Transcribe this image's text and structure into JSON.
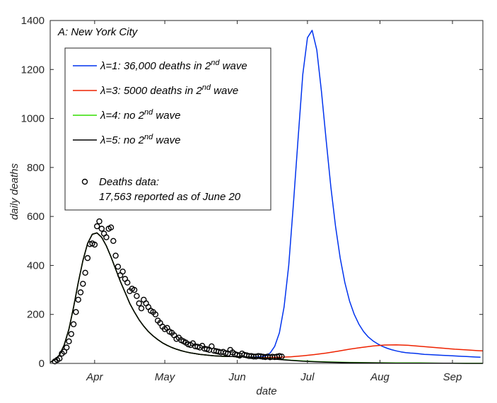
{
  "chart_data": {
    "type": "line",
    "panel_title": "A: New York City",
    "xlabel": "date",
    "ylabel": "daily deaths",
    "x_unit": "days since Mar 1",
    "xlim": [
      12,
      197
    ],
    "ylim": [
      0,
      1400
    ],
    "yticks": [
      0,
      200,
      400,
      600,
      800,
      1000,
      1200,
      1400
    ],
    "xticks": [
      {
        "label": "Apr",
        "day": 31
      },
      {
        "label": "May",
        "day": 61
      },
      {
        "label": "Jun",
        "day": 92
      },
      {
        "label": "Jul",
        "day": 122
      },
      {
        "label": "Aug",
        "day": 153
      },
      {
        "label": "Sep",
        "day": 184
      }
    ],
    "legend_position": "top-left",
    "series": [
      {
        "name": "lambda1",
        "label": "λ=1: 36,000 deaths in 2",
        "sup": "nd",
        "suffix": " wave",
        "color": "#0033ee",
        "x": [
          12,
          14,
          16,
          18,
          20,
          22,
          24,
          26,
          28,
          30,
          32,
          34,
          36,
          38,
          40,
          42,
          44,
          46,
          48,
          50,
          52,
          54,
          56,
          58,
          60,
          62,
          64,
          66,
          68,
          70,
          72,
          74,
          76,
          78,
          80,
          82,
          84,
          86,
          88,
          90,
          92,
          94,
          96,
          98,
          100,
          102,
          104,
          106,
          108,
          110,
          112,
          114,
          116,
          118,
          120,
          122,
          124,
          126,
          128,
          130,
          132,
          134,
          136,
          138,
          140,
          142,
          144,
          146,
          148,
          150,
          152,
          154,
          156,
          158,
          160,
          162,
          164,
          166,
          168,
          170,
          172,
          174,
          176,
          178,
          180,
          182,
          184,
          186,
          188,
          190,
          192,
          194,
          196
        ],
        "y": [
          5,
          15,
          35,
          75,
          140,
          230,
          330,
          420,
          490,
          527,
          533,
          515,
          480,
          435,
          385,
          335,
          290,
          245,
          210,
          178,
          152,
          130,
          112,
          97,
          84,
          74,
          65,
          58,
          52,
          47,
          43,
          40,
          37,
          35,
          33,
          31,
          30,
          29,
          28,
          28,
          27,
          27,
          26,
          26,
          26,
          27,
          30,
          42,
          70,
          125,
          230,
          400,
          650,
          920,
          1180,
          1330,
          1360,
          1280,
          1110,
          910,
          720,
          560,
          430,
          330,
          255,
          200,
          160,
          130,
          108,
          92,
          80,
          70,
          62,
          56,
          51,
          47,
          44,
          42,
          41,
          39,
          37,
          36,
          35,
          34,
          33,
          32,
          31,
          30,
          29,
          28,
          27,
          26,
          25
        ]
      },
      {
        "name": "lambda3",
        "label": "λ=3: 5000 deaths in 2",
        "sup": "nd",
        "suffix": " wave",
        "color": "#ee2200",
        "x": [
          12,
          14,
          16,
          18,
          20,
          22,
          24,
          26,
          28,
          30,
          32,
          34,
          36,
          38,
          40,
          42,
          44,
          46,
          48,
          50,
          52,
          54,
          56,
          58,
          60,
          62,
          64,
          66,
          68,
          70,
          72,
          74,
          76,
          78,
          80,
          82,
          84,
          86,
          88,
          90,
          92,
          94,
          96,
          98,
          100,
          105,
          110,
          115,
          120,
          125,
          130,
          135,
          140,
          145,
          150,
          155,
          160,
          165,
          170,
          175,
          180,
          185,
          190,
          195,
          197
        ],
        "y": [
          5,
          15,
          35,
          75,
          140,
          230,
          330,
          420,
          490,
          527,
          533,
          515,
          480,
          435,
          385,
          335,
          290,
          245,
          210,
          178,
          152,
          130,
          112,
          97,
          84,
          74,
          65,
          58,
          52,
          47,
          43,
          40,
          37,
          35,
          33,
          31,
          30,
          29,
          28,
          28,
          27,
          27,
          26,
          25,
          24,
          24,
          25,
          27,
          31,
          36,
          42,
          50,
          58,
          65,
          71,
          75,
          76,
          74,
          70,
          66,
          62,
          58,
          55,
          52,
          51
        ]
      },
      {
        "name": "lambda4",
        "label": "λ=4: no 2",
        "sup": "nd",
        "suffix": " wave",
        "color": "#33dd00",
        "x": [
          12,
          14,
          16,
          18,
          20,
          22,
          24,
          26,
          28,
          30,
          32,
          34,
          36,
          38,
          40,
          42,
          44,
          46,
          48,
          50,
          52,
          54,
          56,
          58,
          60,
          62,
          64,
          66,
          68,
          70,
          72,
          74,
          76,
          78,
          80,
          82,
          84,
          86,
          88,
          90,
          92,
          94,
          96,
          98,
          100,
          105,
          110,
          115,
          120,
          125,
          130,
          140,
          150,
          160,
          170,
          180,
          190,
          197
        ],
        "y": [
          5,
          15,
          35,
          75,
          140,
          230,
          330,
          420,
          490,
          527,
          533,
          515,
          480,
          435,
          385,
          335,
          290,
          245,
          210,
          178,
          152,
          130,
          112,
          97,
          84,
          74,
          65,
          58,
          52,
          47,
          43,
          40,
          37,
          35,
          33,
          31,
          30,
          29,
          28,
          28,
          27,
          27,
          26,
          25,
          24,
          21,
          17,
          13,
          10,
          8,
          6,
          4,
          3,
          2,
          2,
          1,
          1,
          1
        ]
      },
      {
        "name": "lambda5",
        "label": "λ=5: no 2",
        "sup": "nd",
        "suffix": " wave",
        "color": "#000000",
        "x": [
          12,
          14,
          16,
          18,
          20,
          22,
          24,
          26,
          28,
          30,
          32,
          34,
          36,
          38,
          40,
          42,
          44,
          46,
          48,
          50,
          52,
          54,
          56,
          58,
          60,
          62,
          64,
          66,
          68,
          70,
          72,
          74,
          76,
          78,
          80,
          82,
          84,
          86,
          88,
          90,
          92,
          94,
          96,
          98,
          100,
          105,
          110,
          115,
          120,
          125,
          130,
          140,
          150,
          160,
          170,
          180,
          190,
          197
        ],
        "y": [
          5,
          15,
          35,
          75,
          140,
          230,
          330,
          420,
          490,
          527,
          533,
          515,
          480,
          435,
          385,
          335,
          290,
          245,
          210,
          178,
          152,
          130,
          112,
          97,
          84,
          74,
          65,
          58,
          52,
          47,
          43,
          40,
          37,
          35,
          33,
          31,
          30,
          29,
          28,
          28,
          27,
          27,
          26,
          25,
          24,
          20,
          16,
          12,
          9,
          7,
          5,
          3,
          2,
          1,
          1,
          1,
          0,
          0
        ]
      }
    ],
    "scatter": {
      "name": "deaths-data",
      "label_line1": "Deaths data:",
      "label_line2": "17,563 reported as of June 20",
      "color": "#000000",
      "x": [
        14,
        15,
        16,
        17,
        18,
        19,
        20,
        21,
        22,
        23,
        24,
        25,
        26,
        27,
        28,
        29,
        30,
        31,
        32,
        33,
        34,
        35,
        36,
        37,
        38,
        39,
        40,
        41,
        42,
        43,
        44,
        45,
        46,
        47,
        48,
        49,
        50,
        51,
        52,
        53,
        54,
        55,
        56,
        57,
        58,
        59,
        60,
        61,
        62,
        63,
        64,
        65,
        66,
        67,
        68,
        69,
        70,
        71,
        72,
        73,
        74,
        75,
        76,
        77,
        78,
        79,
        80,
        81,
        82,
        83,
        84,
        85,
        86,
        87,
        88,
        89,
        90,
        91,
        92,
        93,
        94,
        95,
        96,
        97,
        98,
        99,
        100,
        101,
        102,
        103,
        104,
        105,
        106,
        107,
        108,
        109,
        110,
        111
      ],
      "y": [
        8,
        14,
        20,
        40,
        48,
        65,
        90,
        120,
        160,
        210,
        260,
        290,
        325,
        370,
        430,
        487,
        490,
        485,
        560,
        580,
        550,
        530,
        515,
        550,
        555,
        500,
        440,
        395,
        360,
        375,
        345,
        330,
        295,
        305,
        300,
        275,
        245,
        225,
        260,
        245,
        230,
        215,
        210,
        200,
        175,
        165,
        150,
        140,
        145,
        130,
        125,
        115,
        100,
        105,
        95,
        90,
        85,
        78,
        75,
        82,
        70,
        68,
        65,
        72,
        60,
        58,
        55,
        70,
        52,
        50,
        48,
        45,
        47,
        42,
        40,
        55,
        45,
        38,
        35,
        32,
        40,
        35,
        33,
        30,
        30,
        28,
        28,
        30,
        29,
        27,
        26,
        28,
        25,
        27,
        26,
        28,
        30,
        28
      ]
    }
  }
}
